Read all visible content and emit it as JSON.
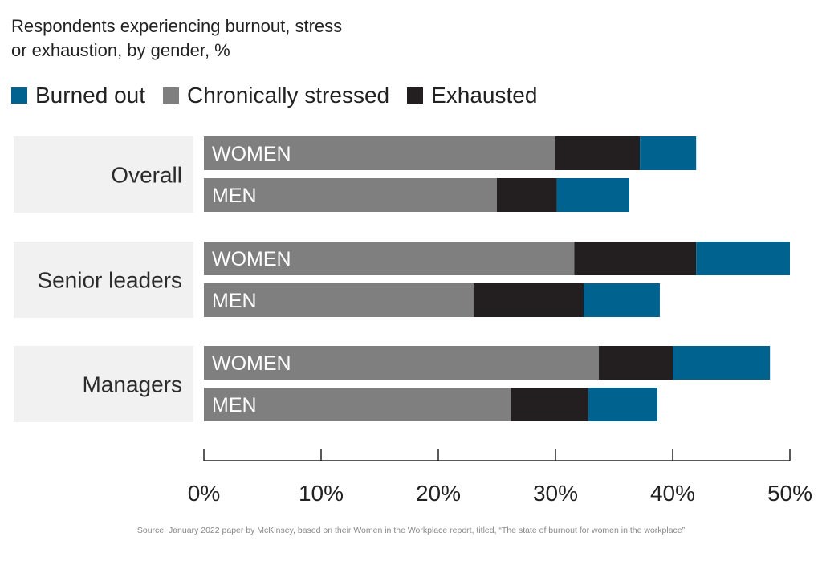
{
  "title_line1": "Respondents experiencing burnout, stress",
  "title_line2": "or exhaustion, by gender, %",
  "legend": [
    {
      "label": "Burned out",
      "color": "#00628f"
    },
    {
      "label": "Chronically stressed",
      "color": "#7f7f7f"
    },
    {
      "label": "Exhausted",
      "color": "#231f20"
    }
  ],
  "source": "Source: January 2022 paper by McKinsey, based on their Women in the Workplace report, titled, “The state of burnout for women in the workplace”",
  "chart_data": {
    "type": "bar",
    "orientation": "horizontal",
    "stacked": true,
    "title": "Respondents experiencing burnout, stress or exhaustion, by gender, %",
    "groups": [
      {
        "name": "Overall",
        "bars": [
          {
            "label": "WOMEN",
            "values": {
              "Chronically stressed": 30,
              "Exhausted": 7.2,
              "Burned out": 4.8
            }
          },
          {
            "label": "MEN",
            "values": {
              "Chronically stressed": 25,
              "Exhausted": 5.1,
              "Burned out": 6.2
            }
          }
        ]
      },
      {
        "name": "Senior leaders",
        "bars": [
          {
            "label": "WOMEN",
            "values": {
              "Chronically stressed": 31.6,
              "Exhausted": 10.4,
              "Burned out": 8
            }
          },
          {
            "label": "MEN",
            "values": {
              "Chronically stressed": 23,
              "Exhausted": 9.4,
              "Burned out": 6.5
            }
          }
        ]
      },
      {
        "name": "Managers",
        "bars": [
          {
            "label": "WOMEN",
            "values": {
              "Chronically stressed": 33.7,
              "Exhausted": 6.3,
              "Burned out": 8.3
            }
          },
          {
            "label": "MEN",
            "values": {
              "Chronically stressed": 26.2,
              "Exhausted": 6.6,
              "Burned out": 5.9
            }
          }
        ]
      }
    ],
    "series_order": [
      "Chronically stressed",
      "Exhausted",
      "Burned out"
    ],
    "series_colors": {
      "Chronically stressed": "#7f7f7f",
      "Exhausted": "#231f20",
      "Burned out": "#00628f"
    },
    "xlim": [
      0,
      50
    ],
    "x_ticks": [
      "0%",
      "10%",
      "20%",
      "30%",
      "40%",
      "50%"
    ],
    "legend_position": "top-left",
    "grid": false
  }
}
